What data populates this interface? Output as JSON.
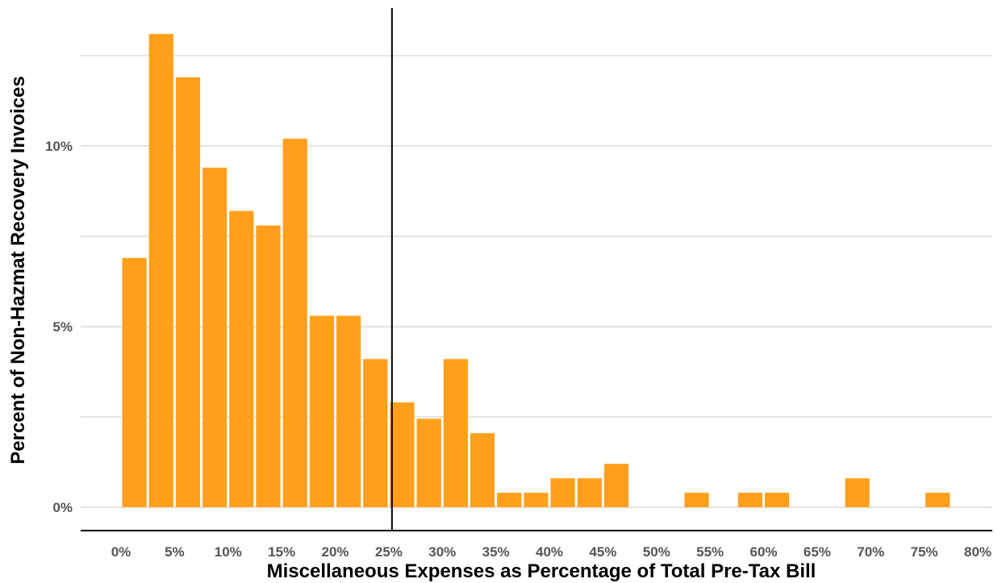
{
  "chart_data": {
    "type": "bar",
    "title": "",
    "xlabel": "Miscellaneous Expenses as Percentage of Total Pre-Tax Bill",
    "ylabel": "Percent of Non-Hazmat Recovery Invoices",
    "bin_width": 2.5,
    "bin_starts": [
      0,
      2.5,
      5,
      7.5,
      10,
      12.5,
      15,
      17.5,
      20,
      22.5,
      25,
      27.5,
      30,
      32.5,
      35,
      37.5,
      40,
      42.5,
      45,
      47.5,
      50,
      52.5,
      55,
      57.5,
      60,
      62.5,
      65,
      67.5,
      70,
      72.5,
      75
    ],
    "values": [
      6.9,
      13.1,
      11.9,
      9.4,
      8.2,
      7.8,
      10.2,
      5.3,
      5.3,
      4.1,
      2.9,
      2.45,
      4.1,
      2.05,
      0.4,
      0.4,
      0.8,
      0.8,
      1.2,
      0,
      0,
      0.4,
      0,
      0.4,
      0.4,
      0,
      0,
      0.8,
      0,
      0,
      0.4
    ],
    "xlim": [
      0,
      80
    ],
    "ylim": [
      -0.5,
      13.5
    ],
    "x_ticks": [
      0,
      5,
      10,
      15,
      20,
      25,
      30,
      35,
      40,
      45,
      50,
      55,
      60,
      65,
      70,
      75,
      80
    ],
    "x_tick_labels": [
      "0%",
      "5%",
      "10%",
      "15%",
      "20%",
      "25%",
      "30%",
      "35%",
      "40%",
      "45%",
      "50%",
      "55%",
      "60%",
      "65%",
      "70%",
      "75%",
      "80%"
    ],
    "y_ticks": [
      0,
      5,
      10
    ],
    "y_tick_labels": [
      "0%",
      "5%",
      "10%"
    ],
    "minor_gridlines_y": [
      2.5,
      7.5,
      12.5
    ],
    "reference_line_x": 25.3,
    "bar_color": "#FF9F1C",
    "grid_color": "#E5E5E5",
    "grid": true,
    "legend": "none"
  }
}
